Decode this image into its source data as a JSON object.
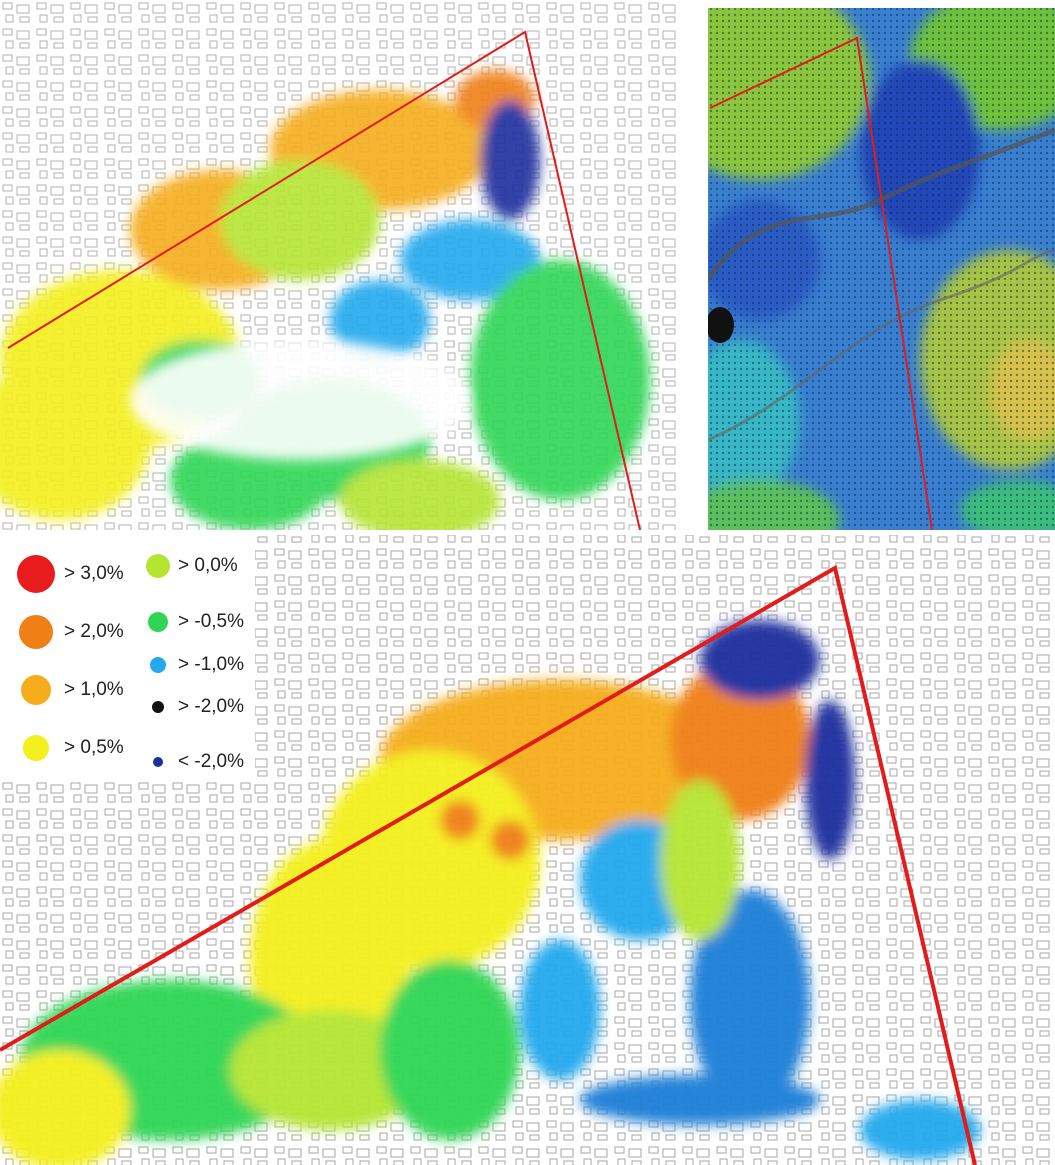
{
  "legend": {
    "items": [
      {
        "label": "> 3,0%",
        "color": "#e81c1c"
      },
      {
        "label": "> 2,0%",
        "color": "#f07f15"
      },
      {
        "label": "> 1,0%",
        "color": "#f6ad1c"
      },
      {
        "label": "> 0,5%",
        "color": "#f4f01e"
      },
      {
        "label": "> 0,0%",
        "color": "#b5e533"
      },
      {
        "label": "> -0,5%",
        "color": "#2fd655"
      },
      {
        "label": "> -1,0%",
        "color": "#22a9ee"
      },
      {
        "label": "> -2,0%",
        "color": "#111111"
      },
      {
        "label": "< -2,0%",
        "color": "#1c2f9e"
      }
    ]
  }
}
